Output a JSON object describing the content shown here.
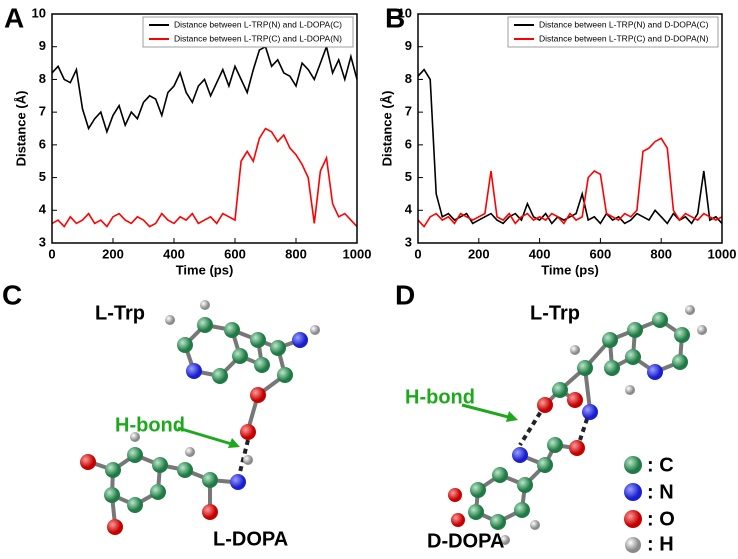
{
  "chart_data": [
    {
      "type": "line",
      "label": "A",
      "xlabel": "Time (ps)",
      "ylabel": "Distance (Å)",
      "x": [
        0,
        20,
        40,
        60,
        80,
        100,
        120,
        140,
        160,
        180,
        200,
        220,
        240,
        260,
        280,
        300,
        320,
        340,
        360,
        380,
        400,
        420,
        440,
        460,
        480,
        500,
        520,
        540,
        560,
        580,
        600,
        620,
        640,
        660,
        680,
        700,
        720,
        740,
        760,
        780,
        800,
        820,
        840,
        860,
        880,
        900,
        920,
        940,
        960,
        980,
        1000
      ],
      "xlim": [
        0,
        1000
      ],
      "xticks": [
        0,
        200,
        400,
        600,
        800,
        1000
      ],
      "ylim": [
        3,
        10
      ],
      "yticks": [
        3,
        4,
        5,
        6,
        7,
        8,
        9,
        10
      ],
      "legend": "upper right",
      "series": [
        {
          "name": "Distance between L-TRP(N) and L-DOPA(C)",
          "color": "#000000",
          "values": [
            8.2,
            8.4,
            8.0,
            7.9,
            8.3,
            7.1,
            6.5,
            6.8,
            7.0,
            6.4,
            6.9,
            7.2,
            6.6,
            7.0,
            6.8,
            7.3,
            7.5,
            7.4,
            6.9,
            7.6,
            7.8,
            8.2,
            7.6,
            7.3,
            7.8,
            8.0,
            7.5,
            7.9,
            8.3,
            7.8,
            8.4,
            8.0,
            7.6,
            8.3,
            8.9,
            9.0,
            8.4,
            8.6,
            8.2,
            8.1,
            7.8,
            8.5,
            8.3,
            8.0,
            8.5,
            9.0,
            8.2,
            8.6,
            8.0,
            8.7,
            8.0
          ]
        },
        {
          "name": "Distance between L-TRP(C) and L-DOPA(N)",
          "color": "#ff0000",
          "values": [
            3.6,
            3.7,
            3.5,
            3.8,
            3.6,
            3.7,
            3.9,
            3.6,
            3.7,
            3.5,
            3.8,
            3.9,
            3.7,
            3.6,
            3.8,
            3.7,
            3.5,
            3.6,
            3.9,
            3.7,
            3.6,
            3.8,
            3.7,
            3.9,
            3.6,
            3.7,
            3.8,
            3.6,
            3.9,
            3.8,
            3.7,
            5.5,
            5.8,
            5.5,
            6.2,
            6.5,
            6.4,
            6.1,
            6.3,
            5.9,
            5.7,
            5.4,
            5.0,
            3.6,
            5.2,
            5.6,
            4.2,
            3.8,
            3.9,
            3.7,
            3.5
          ]
        }
      ]
    },
    {
      "type": "line",
      "label": "B",
      "xlabel": "Time (ps)",
      "ylabel": "Distance (Å)",
      "x": [
        0,
        20,
        40,
        60,
        80,
        100,
        120,
        140,
        160,
        180,
        200,
        220,
        240,
        260,
        280,
        300,
        320,
        340,
        360,
        380,
        400,
        420,
        440,
        460,
        480,
        500,
        520,
        540,
        560,
        580,
        600,
        620,
        640,
        660,
        680,
        700,
        720,
        740,
        760,
        780,
        800,
        820,
        840,
        860,
        880,
        900,
        920,
        940,
        960,
        980,
        1000
      ],
      "xlim": [
        0,
        1000
      ],
      "xticks": [
        0,
        200,
        400,
        600,
        800,
        1000
      ],
      "ylim": [
        3,
        10
      ],
      "yticks": [
        3,
        4,
        5,
        6,
        7,
        8,
        9,
        10
      ],
      "legend": "upper right",
      "series": [
        {
          "name": "Distance between L-TRP(N) and D-DOPA(C)",
          "color": "#000000",
          "values": [
            8.1,
            8.3,
            8.0,
            4.5,
            3.8,
            3.9,
            3.7,
            3.8,
            3.9,
            3.6,
            3.7,
            3.8,
            3.9,
            3.7,
            3.6,
            3.8,
            3.9,
            3.7,
            4.2,
            3.8,
            3.7,
            3.9,
            3.6,
            3.8,
            3.7,
            3.8,
            3.9,
            4.5,
            3.7,
            3.8,
            3.6,
            3.9,
            3.7,
            3.8,
            3.6,
            3.7,
            3.9,
            3.8,
            3.7,
            4.0,
            3.8,
            3.6,
            3.9,
            3.7,
            3.8,
            3.6,
            3.9,
            5.2,
            3.7,
            3.8,
            3.6
          ]
        },
        {
          "name": "Distance between L-TRP(C) and D-DOPA(N)",
          "color": "#ff0000",
          "values": [
            3.7,
            3.5,
            3.8,
            3.9,
            3.7,
            3.8,
            3.6,
            3.9,
            3.8,
            3.7,
            3.8,
            3.9,
            5.2,
            3.8,
            3.7,
            3.9,
            3.6,
            3.8,
            3.9,
            3.7,
            3.8,
            3.7,
            3.9,
            3.8,
            3.6,
            3.9,
            3.7,
            3.8,
            5.0,
            5.2,
            5.1,
            3.9,
            3.8,
            3.7,
            3.9,
            3.8,
            4.0,
            5.8,
            5.9,
            6.1,
            6.2,
            5.9,
            4.0,
            3.7,
            3.9,
            3.8,
            3.7,
            3.9,
            3.8,
            3.7,
            3.8
          ]
        }
      ]
    }
  ],
  "diagrams": [
    {
      "label": "C",
      "top": "L-Trp",
      "hbond": "H-bond",
      "bottom": "L-DOPA"
    },
    {
      "label": "D",
      "top": "L-Trp",
      "hbond": "H-bond",
      "bottom": "D-DOPA"
    }
  ],
  "atom_legend": [
    ": C",
    ": N",
    ": O",
    ": H"
  ]
}
